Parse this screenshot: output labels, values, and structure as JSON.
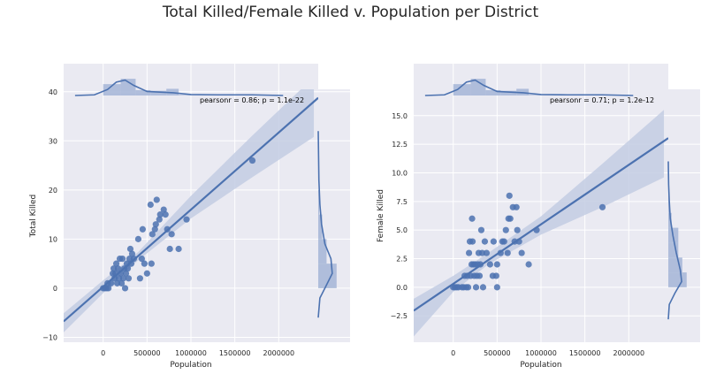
{
  "title": "Total Killed/Female Killed v. Population per District",
  "chart_data": [
    {
      "type": "scatter",
      "xlabel": "Population",
      "ylabel": "Total Killed",
      "xlim": [
        -450000,
        2450000
      ],
      "ylim": [
        -11,
        40.5
      ],
      "xticks": [
        0,
        500000,
        1000000,
        1500000,
        2000000
      ],
      "yticks": [
        -10,
        0,
        10,
        20,
        30,
        40
      ],
      "ytick_labels": [
        "−10",
        "0",
        "10",
        "20",
        "30",
        "40"
      ],
      "annotation": "pearsonr = 0.86; p = 1.1e-22",
      "regression": {
        "intercept": 0.3,
        "slope": 1.57e-05
      },
      "ci_band": [
        [
          -450000,
          -9.0,
          -5.1
        ],
        [
          0,
          -1.0,
          1.6
        ],
        [
          400000,
          5.7,
          7.4
        ],
        [
          1000000,
          14.2,
          18.8
        ],
        [
          1700000,
          22.6,
          31.1
        ],
        [
          2400000,
          30.8,
          43.0
        ]
      ],
      "marginal_x": {
        "bins": [
          [
            0,
            200000,
            0.34
          ],
          [
            200000,
            370000,
            0.5
          ],
          [
            370000,
            540000,
            0.16
          ],
          [
            540000,
            720000,
            0.14
          ],
          [
            720000,
            860000,
            0.2
          ],
          [
            860000,
            1700000,
            0.02
          ],
          [
            1700000,
            2000000,
            0.02
          ]
        ],
        "kde": [
          [
            -320000,
            0.0
          ],
          [
            -100000,
            0.02
          ],
          [
            50000,
            0.18
          ],
          [
            150000,
            0.4
          ],
          [
            250000,
            0.46
          ],
          [
            350000,
            0.3
          ],
          [
            500000,
            0.12
          ],
          [
            650000,
            0.1
          ],
          [
            800000,
            0.08
          ],
          [
            1000000,
            0.03
          ],
          [
            1300000,
            0.02
          ],
          [
            1700000,
            0.02
          ],
          [
            2050000,
            0.0
          ]
        ]
      },
      "marginal_y": {
        "bins": [
          [
            0,
            5,
            0.55
          ],
          [
            5,
            10,
            0.25
          ],
          [
            10,
            15,
            0.12
          ],
          [
            15,
            20,
            0.03
          ],
          [
            20,
            25,
            0.0
          ],
          [
            25,
            30,
            0.01
          ]
        ],
        "kde": [
          [
            -6,
            0.0
          ],
          [
            -2,
            0.05
          ],
          [
            0,
            0.2
          ],
          [
            3,
            0.42
          ],
          [
            6,
            0.38
          ],
          [
            9,
            0.2
          ],
          [
            13,
            0.1
          ],
          [
            17,
            0.05
          ],
          [
            22,
            0.02
          ],
          [
            27,
            0.01
          ],
          [
            32,
            0.0
          ]
        ]
      },
      "points": [
        [
          0,
          0
        ],
        [
          20000,
          0
        ],
        [
          40000,
          0
        ],
        [
          60000,
          0
        ],
        [
          50000,
          1
        ],
        [
          90000,
          1
        ],
        [
          110000,
          3
        ],
        [
          120000,
          4
        ],
        [
          130000,
          2
        ],
        [
          140000,
          3
        ],
        [
          150000,
          5
        ],
        [
          160000,
          1
        ],
        [
          170000,
          4
        ],
        [
          180000,
          2
        ],
        [
          190000,
          6
        ],
        [
          200000,
          3
        ],
        [
          210000,
          1
        ],
        [
          220000,
          6
        ],
        [
          230000,
          2
        ],
        [
          240000,
          4
        ],
        [
          250000,
          0
        ],
        [
          260000,
          3
        ],
        [
          270000,
          5
        ],
        [
          280000,
          4
        ],
        [
          290000,
          2
        ],
        [
          300000,
          6
        ],
        [
          310000,
          8
        ],
        [
          320000,
          5
        ],
        [
          330000,
          7
        ],
        [
          350000,
          6
        ],
        [
          400000,
          10
        ],
        [
          420000,
          2
        ],
        [
          440000,
          6
        ],
        [
          450000,
          12
        ],
        [
          470000,
          5
        ],
        [
          500000,
          3
        ],
        [
          540000,
          17
        ],
        [
          550000,
          5
        ],
        [
          560000,
          11
        ],
        [
          590000,
          12
        ],
        [
          600000,
          13
        ],
        [
          610000,
          18
        ],
        [
          640000,
          14
        ],
        [
          650000,
          15
        ],
        [
          690000,
          16
        ],
        [
          710000,
          15
        ],
        [
          730000,
          12
        ],
        [
          760000,
          8
        ],
        [
          780000,
          11
        ],
        [
          860000,
          8
        ],
        [
          950000,
          14
        ],
        [
          1700000,
          26
        ]
      ]
    },
    {
      "type": "scatter",
      "xlabel": "Population",
      "ylabel": "Female Killed",
      "xlim": [
        -450000,
        2450000
      ],
      "ylim": [
        -4.8,
        17.3
      ],
      "xticks": [
        0,
        500000,
        1000000,
        1500000,
        2000000
      ],
      "yticks": [
        -2.5,
        0.0,
        2.5,
        5.0,
        7.5,
        10.0,
        12.5,
        15.0
      ],
      "ytick_labels": [
        "−2.5",
        "0.0",
        "2.5",
        "5.0",
        "7.5",
        "10.0",
        "12.5",
        "15.0"
      ],
      "annotation": "pearsonr = 0.71; p = 1.2e-12",
      "regression": {
        "intercept": 0.3,
        "slope": 5.2e-06
      },
      "ci_band": [
        [
          -450000,
          -4.3,
          -1.0
        ],
        [
          0,
          -0.4,
          1.0
        ],
        [
          400000,
          2.0,
          3.0
        ],
        [
          1000000,
          4.6,
          6.2
        ],
        [
          1700000,
          7.0,
          10.8
        ],
        [
          2400000,
          9.6,
          15.5
        ]
      ],
      "marginal_x": {
        "bins": [
          [
            0,
            200000,
            0.34
          ],
          [
            200000,
            370000,
            0.5
          ],
          [
            370000,
            540000,
            0.16
          ],
          [
            540000,
            720000,
            0.14
          ],
          [
            720000,
            860000,
            0.2
          ],
          [
            860000,
            1700000,
            0.02
          ],
          [
            1700000,
            2000000,
            0.02
          ]
        ],
        "kde": [
          [
            -320000,
            0.0
          ],
          [
            -100000,
            0.02
          ],
          [
            50000,
            0.18
          ],
          [
            150000,
            0.4
          ],
          [
            250000,
            0.46
          ],
          [
            350000,
            0.3
          ],
          [
            500000,
            0.12
          ],
          [
            650000,
            0.1
          ],
          [
            800000,
            0.08
          ],
          [
            1000000,
            0.03
          ],
          [
            1300000,
            0.02
          ],
          [
            1700000,
            0.02
          ],
          [
            2050000,
            0.0
          ]
        ]
      },
      "marginal_y": {
        "bins": [
          [
            0,
            1.3,
            0.55
          ],
          [
            1.3,
            2.6,
            0.42
          ],
          [
            2.6,
            3.9,
            0.3
          ],
          [
            3.9,
            5.2,
            0.3
          ],
          [
            5.2,
            6.5,
            0.1
          ],
          [
            6.5,
            8,
            0.03
          ]
        ],
        "kde": [
          [
            -2.8,
            0.0
          ],
          [
            -1.5,
            0.03
          ],
          [
            -0.5,
            0.2
          ],
          [
            0.5,
            0.4
          ],
          [
            1.5,
            0.36
          ],
          [
            3,
            0.24
          ],
          [
            4.5,
            0.14
          ],
          [
            6,
            0.06
          ],
          [
            7.5,
            0.03
          ],
          [
            9,
            0.01
          ],
          [
            11,
            0.0
          ]
        ]
      },
      "points": [
        [
          0,
          0
        ],
        [
          20000,
          0
        ],
        [
          40000,
          0
        ],
        [
          60000,
          0
        ],
        [
          100000,
          0
        ],
        [
          120000,
          0
        ],
        [
          130000,
          1
        ],
        [
          150000,
          0
        ],
        [
          160000,
          1
        ],
        [
          170000,
          0
        ],
        [
          180000,
          3
        ],
        [
          190000,
          4
        ],
        [
          200000,
          1
        ],
        [
          210000,
          2
        ],
        [
          215000,
          6
        ],
        [
          220000,
          4
        ],
        [
          230000,
          2
        ],
        [
          240000,
          1
        ],
        [
          250000,
          2
        ],
        [
          260000,
          0
        ],
        [
          270000,
          1
        ],
        [
          280000,
          2
        ],
        [
          290000,
          3
        ],
        [
          300000,
          1
        ],
        [
          310000,
          2
        ],
        [
          320000,
          5
        ],
        [
          330000,
          3
        ],
        [
          340000,
          0
        ],
        [
          360000,
          4
        ],
        [
          380000,
          3
        ],
        [
          420000,
          2
        ],
        [
          450000,
          1
        ],
        [
          460000,
          4
        ],
        [
          490000,
          1
        ],
        [
          500000,
          2
        ],
        [
          500000,
          0
        ],
        [
          540000,
          3
        ],
        [
          560000,
          4
        ],
        [
          580000,
          4
        ],
        [
          600000,
          5
        ],
        [
          620000,
          3
        ],
        [
          630000,
          6
        ],
        [
          640000,
          8
        ],
        [
          650000,
          6
        ],
        [
          680000,
          7
        ],
        [
          700000,
          4
        ],
        [
          720000,
          7
        ],
        [
          730000,
          5
        ],
        [
          750000,
          4
        ],
        [
          780000,
          3
        ],
        [
          860000,
          2
        ],
        [
          950000,
          5
        ],
        [
          1700000,
          7
        ]
      ]
    }
  ],
  "colors": {
    "point": "#4c72b0",
    "line": "#4c72b0",
    "band": "#c3cde3",
    "hist": "#a8b8d8",
    "axes_bg": "#eaeaf2",
    "grid": "#ffffff"
  }
}
